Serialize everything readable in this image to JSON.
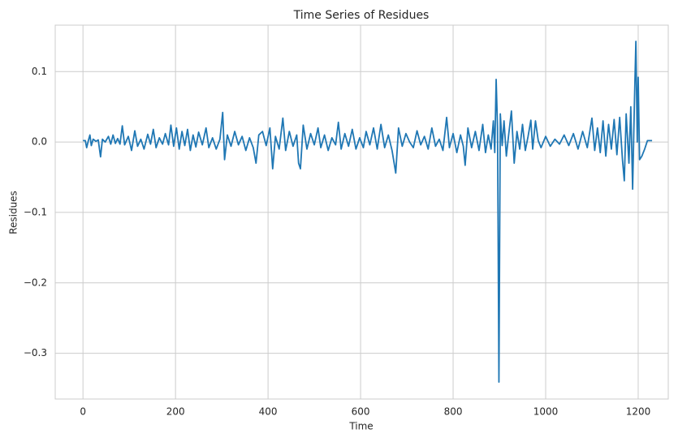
{
  "chart_data": {
    "type": "line",
    "title": "Time Series of Residues",
    "xlabel": "Time",
    "ylabel": "Residues",
    "x": [
      0,
      5,
      8,
      12,
      15,
      18,
      22,
      28,
      33,
      38,
      42,
      48,
      55,
      60,
      65,
      70,
      75,
      80,
      85,
      90,
      98,
      105,
      112,
      118,
      125,
      132,
      140,
      146,
      152,
      158,
      165,
      172,
      178,
      185,
      190,
      196,
      202,
      208,
      214,
      220,
      226,
      232,
      238,
      244,
      250,
      258,
      266,
      272,
      280,
      288,
      296,
      302,
      306,
      312,
      320,
      328,
      336,
      344,
      352,
      360,
      368,
      374,
      380,
      388,
      396,
      404,
      410,
      416,
      424,
      432,
      438,
      446,
      454,
      462,
      466,
      470,
      476,
      484,
      492,
      500,
      508,
      514,
      522,
      530,
      538,
      546,
      552,
      558,
      566,
      574,
      582,
      590,
      598,
      606,
      612,
      620,
      628,
      636,
      644,
      652,
      660,
      668,
      676,
      682,
      690,
      698,
      706,
      714,
      722,
      730,
      738,
      746,
      754,
      762,
      770,
      778,
      786,
      792,
      800,
      808,
      816,
      822,
      826,
      832,
      840,
      848,
      856,
      864,
      870,
      876,
      882,
      887,
      890,
      893,
      896,
      899,
      902,
      906,
      910,
      915,
      920,
      926,
      932,
      938,
      944,
      950,
      956,
      962,
      968,
      972,
      978,
      984,
      990,
      1000,
      1010,
      1020,
      1030,
      1040,
      1050,
      1060,
      1070,
      1080,
      1090,
      1100,
      1106,
      1112,
      1118,
      1124,
      1130,
      1136,
      1142,
      1148,
      1154,
      1160,
      1166,
      1170,
      1174,
      1180,
      1184,
      1188,
      1192,
      1195,
      1198,
      1200,
      1203,
      1208,
      1214,
      1220,
      1230
    ],
    "series": [
      {
        "color": "#1f77b4",
        "values": [
          0.002,
          0.002,
          -0.008,
          0.003,
          0.01,
          -0.005,
          0.004,
          0.001,
          0.003,
          -0.021,
          0.004,
          0.0,
          0.008,
          -0.003,
          0.01,
          -0.002,
          0.005,
          -0.003,
          0.023,
          -0.004,
          0.008,
          -0.012,
          0.016,
          -0.006,
          0.004,
          -0.01,
          0.011,
          -0.003,
          0.018,
          -0.008,
          0.006,
          -0.003,
          0.012,
          -0.004,
          0.024,
          -0.006,
          0.02,
          -0.01,
          0.015,
          -0.005,
          0.018,
          -0.012,
          0.01,
          -0.007,
          0.014,
          -0.004,
          0.02,
          -0.008,
          0.006,
          -0.01,
          0.004,
          0.042,
          -0.025,
          0.01,
          -0.006,
          0.015,
          -0.004,
          0.008,
          -0.012,
          0.006,
          -0.008,
          -0.03,
          0.01,
          0.015,
          -0.005,
          0.02,
          -0.038,
          0.008,
          -0.01,
          0.034,
          -0.012,
          0.015,
          -0.006,
          0.01,
          -0.03,
          -0.038,
          0.024,
          -0.01,
          0.012,
          -0.004,
          0.02,
          -0.008,
          0.01,
          -0.012,
          0.006,
          -0.004,
          0.028,
          -0.01,
          0.012,
          -0.006,
          0.018,
          -0.01,
          0.006,
          -0.008,
          0.015,
          -0.004,
          0.02,
          -0.01,
          0.025,
          -0.008,
          0.01,
          -0.012,
          -0.044,
          0.02,
          -0.006,
          0.012,
          0.0,
          -0.008,
          0.016,
          -0.004,
          0.008,
          -0.01,
          0.02,
          -0.006,
          0.004,
          -0.012,
          0.035,
          -0.008,
          0.012,
          -0.015,
          0.01,
          -0.006,
          -0.033,
          0.02,
          -0.008,
          0.015,
          -0.012,
          0.025,
          -0.015,
          0.01,
          -0.01,
          0.03,
          -0.015,
          0.089,
          0.02,
          -0.341,
          0.04,
          -0.005,
          0.03,
          -0.02,
          0.01,
          0.044,
          -0.03,
          0.015,
          -0.01,
          0.025,
          -0.012,
          0.008,
          0.031,
          -0.01,
          0.03,
          0.002,
          -0.008,
          0.008,
          -0.006,
          0.004,
          -0.003,
          0.01,
          -0.005,
          0.012,
          -0.01,
          0.015,
          -0.008,
          0.034,
          -0.012,
          0.02,
          -0.015,
          0.03,
          -0.02,
          0.025,
          -0.01,
          0.032,
          -0.018,
          0.035,
          -0.025,
          -0.055,
          0.04,
          -0.03,
          0.05,
          -0.067,
          0.06,
          0.143,
          0.0,
          0.092,
          -0.025,
          -0.02,
          -0.01,
          0.002,
          0.002
        ]
      }
    ],
    "xlim": [
      -60,
      1265
    ],
    "ylim": [
      -0.365,
      0.166
    ],
    "xticks": [
      0,
      200,
      400,
      600,
      800,
      1000,
      1200
    ],
    "yticks": [
      {
        "value": -0.3,
        "label": "−0.3"
      },
      {
        "value": -0.2,
        "label": "−0.2"
      },
      {
        "value": -0.1,
        "label": "−0.1"
      },
      {
        "value": 0,
        "label": "0.0"
      },
      0.1
    ],
    "grid": true
  }
}
